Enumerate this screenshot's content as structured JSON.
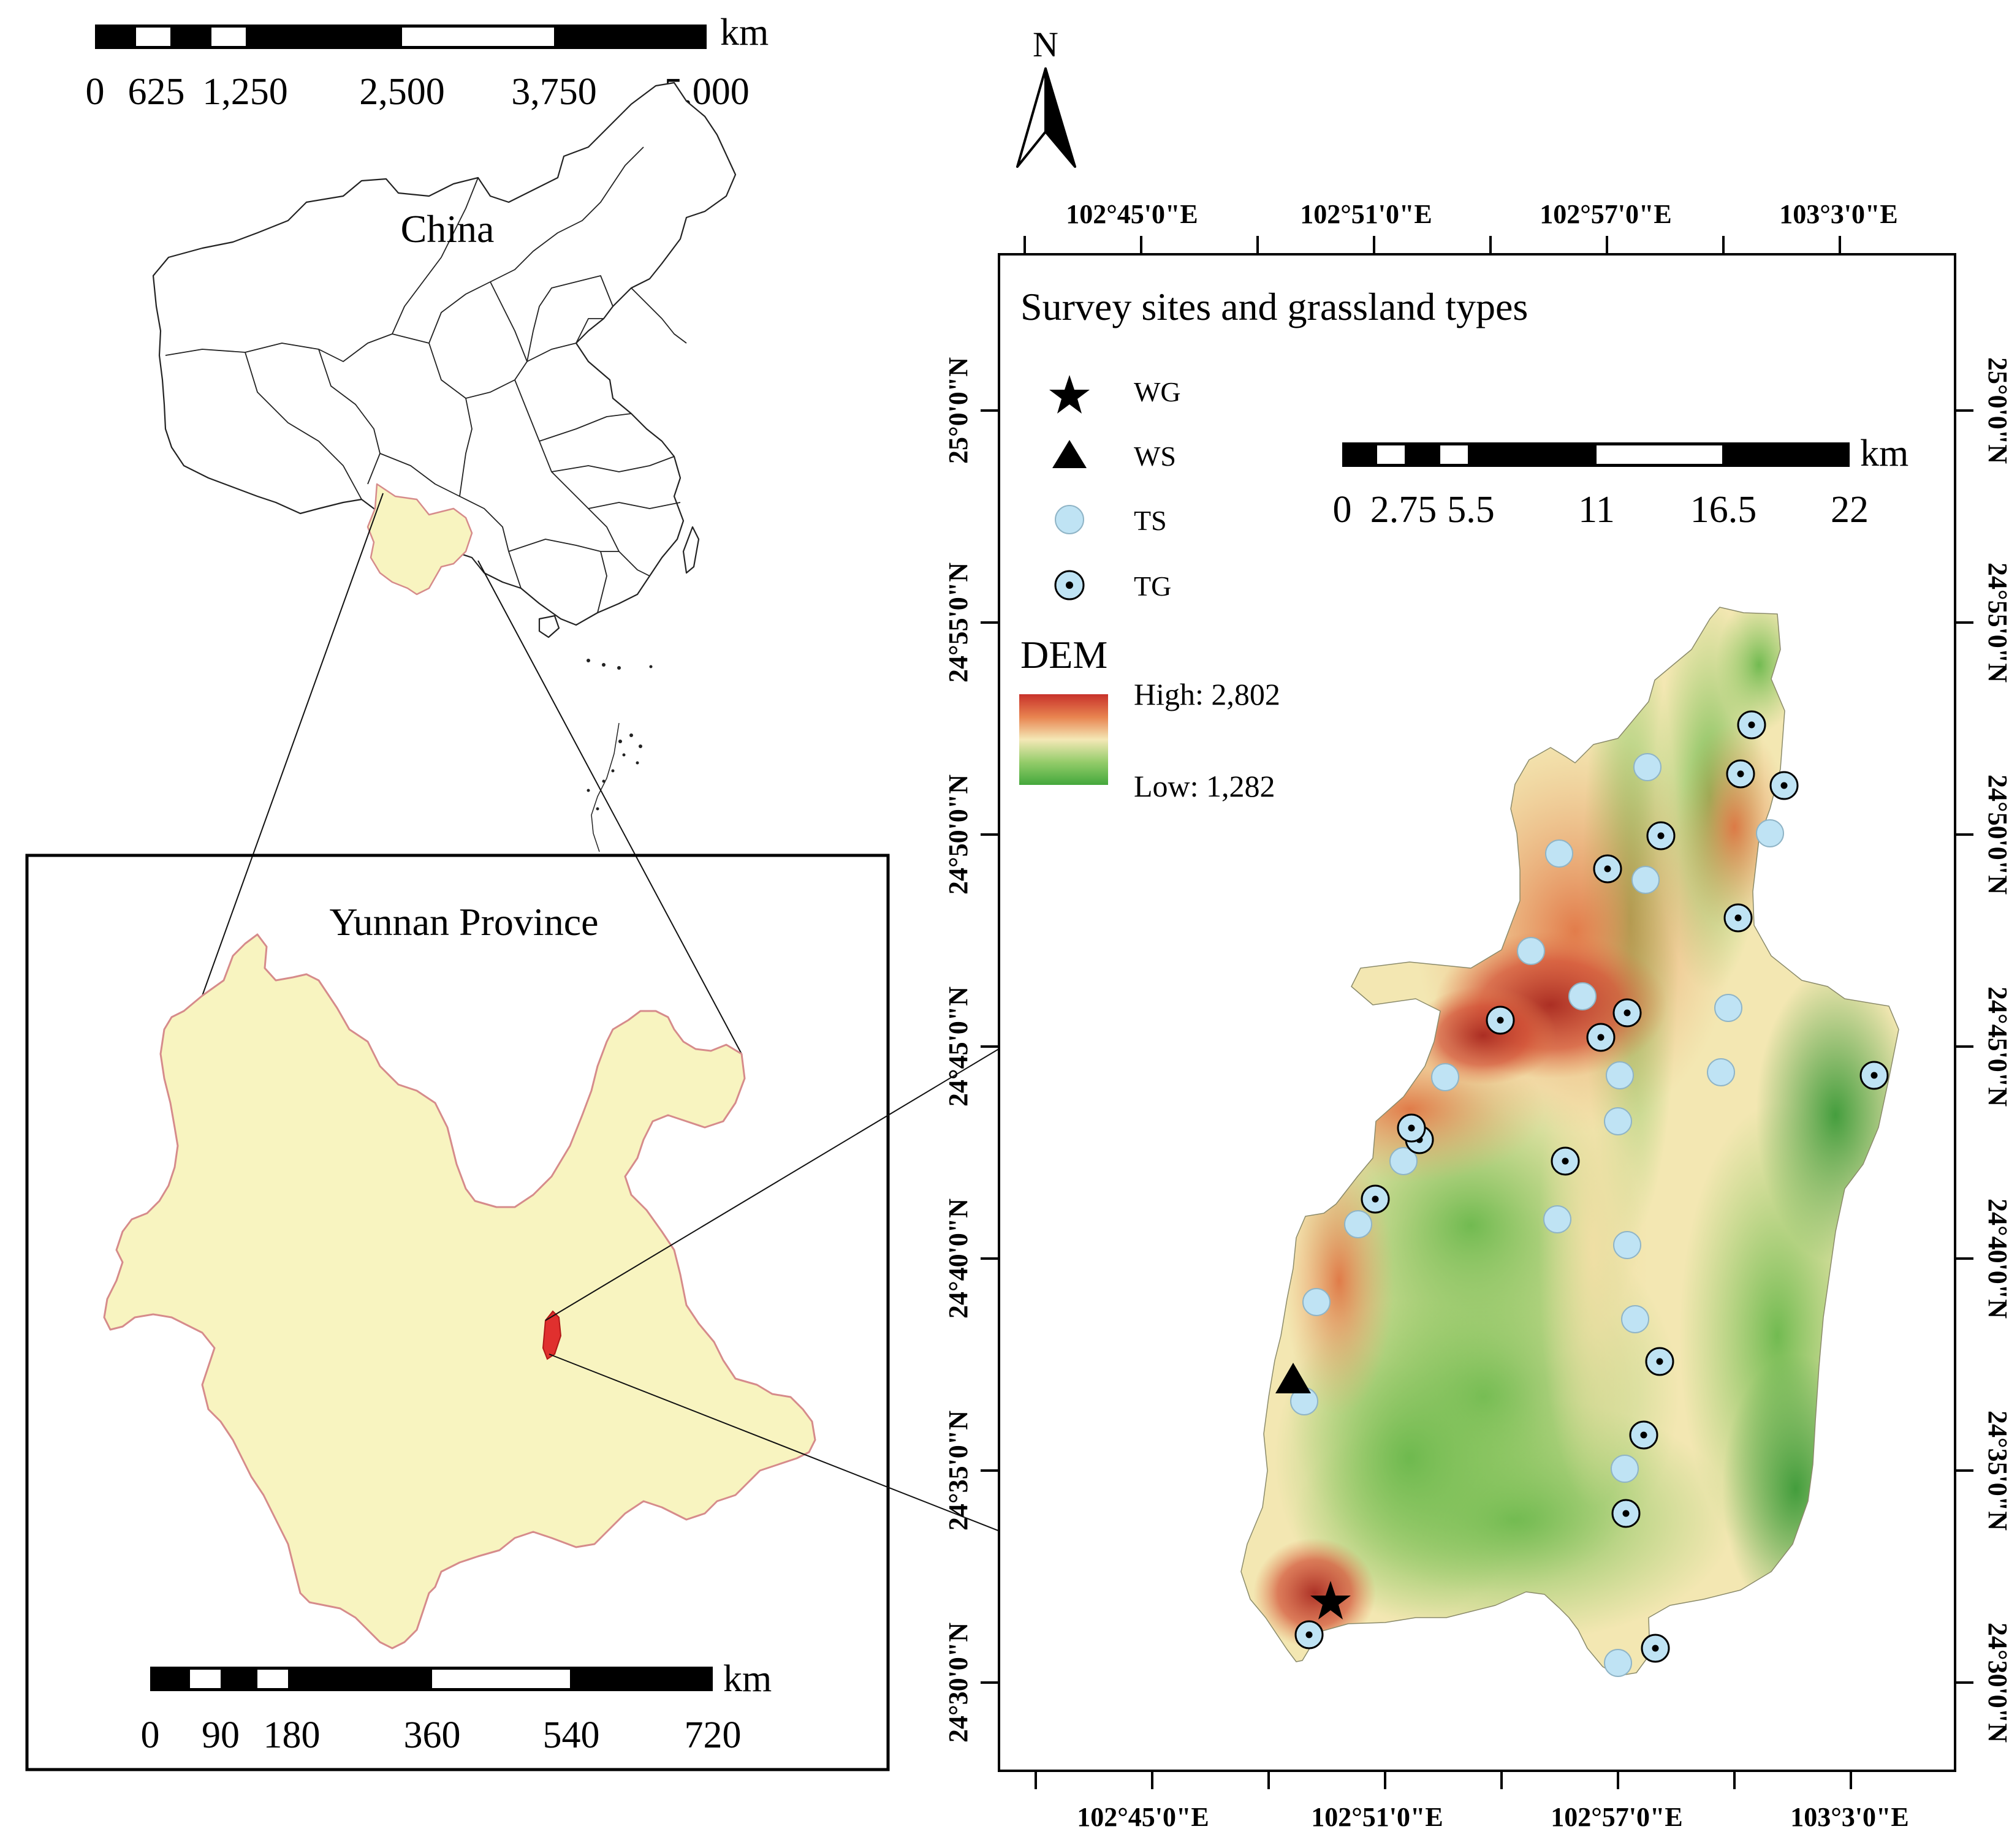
{
  "china_scale": {
    "ticks": [
      "0",
      "625",
      "1,250",
      "2,500",
      "3,750",
      "5,000"
    ],
    "unit": "km"
  },
  "china_label": "China",
  "yunnan_label": "Yunnan Province",
  "yunnan_scale": {
    "ticks": [
      "0",
      "90",
      "180",
      "360",
      "540",
      "720"
    ],
    "unit": "km"
  },
  "north_arrow": {
    "label": "N"
  },
  "study_map": {
    "title": "Survey sites and grassland types",
    "legend": {
      "wg": "WG",
      "ws": "WS",
      "ts": "TS",
      "tg": "TG",
      "dem_title": "DEM",
      "dem_high": "High: 2,802",
      "dem_low": "Low: 1,282"
    },
    "scale": {
      "ticks": [
        "0",
        "2.75",
        "5.5",
        "11",
        "16.5",
        "22"
      ],
      "unit": "km"
    },
    "lon_labels": [
      "102°45'0\"E",
      "102°51'0\"E",
      "102°57'0\"E",
      "103°3'0\"E"
    ],
    "lat_labels": [
      "25°0'0\"N",
      "24°55'0\"N",
      "24°50'0\"N",
      "24°45'0\"N",
      "24°40'0\"N",
      "24°35'0\"N",
      "24°30'0\"N"
    ]
  },
  "colors": {
    "yunnan_fill": "#f8f4c0",
    "yunnan_edge": "#d68b8b",
    "study_area_red": "#e0302e",
    "dem_high": "#c8322a",
    "dem_mid": "#f2e8b0",
    "dem_low": "#44a83c",
    "site_fill": "#bfe3f4"
  }
}
